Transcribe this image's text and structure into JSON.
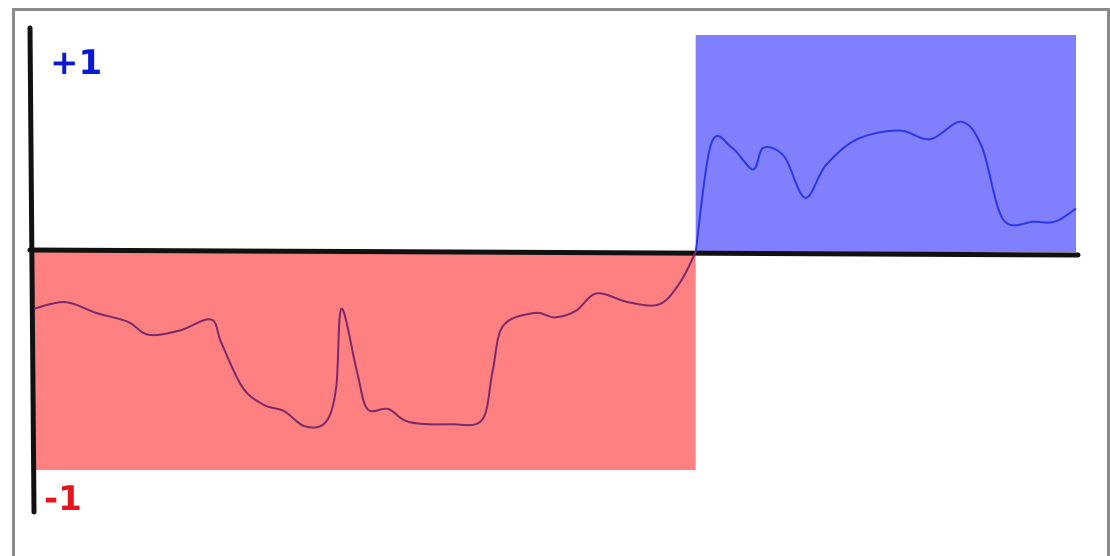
{
  "chart_data": {
    "type": "area",
    "ylim": [
      -1,
      1
    ],
    "grid": false,
    "y_tick_labels": {
      "top": "+1",
      "bottom": "-1"
    },
    "colors": {
      "positive_band": "#8080ff",
      "negative_band": "#ff8080",
      "positive_line": "#2b37e8",
      "negative_line": "#7a2a6a",
      "axis": "#111111",
      "top_label": "#0b18d6",
      "bottom_label": "#e4141a"
    },
    "bands": [
      {
        "sign": "negative",
        "x_range": [
          0,
          0.635
        ],
        "y_range": [
          -1,
          0
        ]
      },
      {
        "sign": "positive",
        "x_range": [
          0.635,
          1.0
        ],
        "y_range": [
          0,
          1
        ]
      }
    ],
    "series": [
      {
        "values": [
          [
            0.0,
            -0.26
          ],
          [
            0.03,
            -0.23
          ],
          [
            0.06,
            -0.28
          ],
          [
            0.09,
            -0.32
          ],
          [
            0.11,
            -0.38
          ],
          [
            0.14,
            -0.36
          ],
          [
            0.17,
            -0.31
          ],
          [
            0.18,
            -0.42
          ],
          [
            0.2,
            -0.62
          ],
          [
            0.22,
            -0.7
          ],
          [
            0.24,
            -0.73
          ],
          [
            0.26,
            -0.8
          ],
          [
            0.28,
            -0.78
          ],
          [
            0.29,
            -0.62
          ],
          [
            0.295,
            -0.26
          ],
          [
            0.31,
            -0.55
          ],
          [
            0.32,
            -0.72
          ],
          [
            0.34,
            -0.72
          ],
          [
            0.36,
            -0.78
          ],
          [
            0.4,
            -0.79
          ],
          [
            0.43,
            -0.77
          ],
          [
            0.44,
            -0.55
          ],
          [
            0.45,
            -0.34
          ],
          [
            0.48,
            -0.28
          ],
          [
            0.5,
            -0.3
          ],
          [
            0.52,
            -0.27
          ],
          [
            0.54,
            -0.19
          ],
          [
            0.57,
            -0.23
          ],
          [
            0.6,
            -0.24
          ],
          [
            0.62,
            -0.14
          ],
          [
            0.635,
            0.0
          ],
          [
            0.65,
            0.5
          ],
          [
            0.67,
            0.48
          ],
          [
            0.69,
            0.38
          ],
          [
            0.7,
            0.48
          ],
          [
            0.72,
            0.44
          ],
          [
            0.74,
            0.25
          ],
          [
            0.76,
            0.4
          ],
          [
            0.79,
            0.52
          ],
          [
            0.83,
            0.56
          ],
          [
            0.86,
            0.52
          ],
          [
            0.89,
            0.6
          ],
          [
            0.91,
            0.48
          ],
          [
            0.93,
            0.15
          ],
          [
            0.96,
            0.14
          ],
          [
            0.98,
            0.14
          ],
          [
            1.0,
            0.2
          ]
        ]
      }
    ]
  }
}
